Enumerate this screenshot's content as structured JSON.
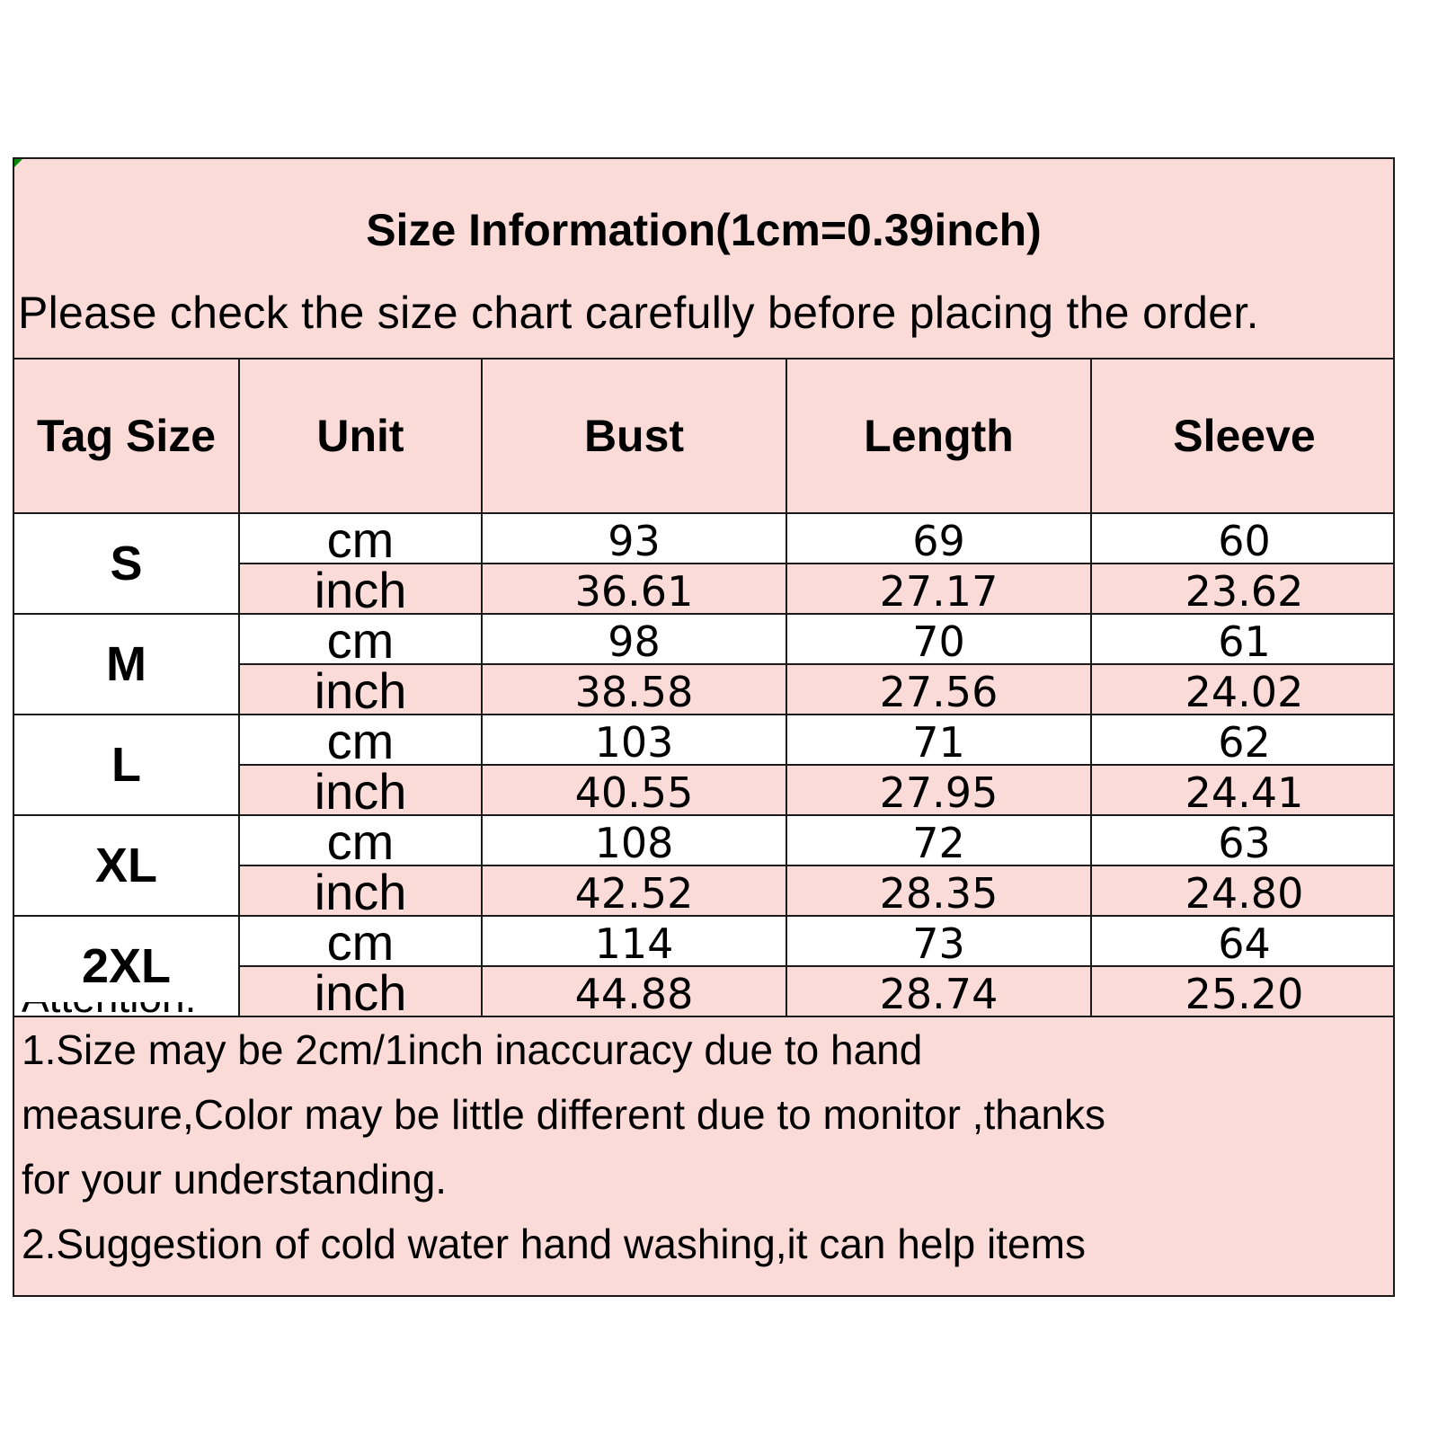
{
  "title": "Size Information(1cm=0.39inch)",
  "subtitle": "Please check the size chart carefully before placing the order.",
  "columns": [
    "Tag Size",
    "Unit",
    "Bust",
    "Length",
    "Sleeve"
  ],
  "sizes": [
    {
      "tag": "S",
      "cm": {
        "unit": "cm",
        "values": [
          "93",
          "69",
          "60"
        ]
      },
      "inch": {
        "unit": "inch",
        "values": [
          "36.61",
          "27.17",
          "23.62"
        ]
      }
    },
    {
      "tag": "M",
      "cm": {
        "unit": "cm",
        "values": [
          "98",
          "70",
          "61"
        ]
      },
      "inch": {
        "unit": "inch",
        "values": [
          "38.58",
          "27.56",
          "24.02"
        ]
      }
    },
    {
      "tag": "L",
      "cm": {
        "unit": "cm",
        "values": [
          "103",
          "71",
          "62"
        ]
      },
      "inch": {
        "unit": "inch",
        "values": [
          "40.55",
          "27.95",
          "24.41"
        ]
      }
    },
    {
      "tag": "XL",
      "cm": {
        "unit": "cm",
        "values": [
          "108",
          "72",
          "63"
        ]
      },
      "inch": {
        "unit": "inch",
        "values": [
          "42.52",
          "28.35",
          "24.80"
        ]
      }
    },
    {
      "tag": "2XL",
      "cm": {
        "unit": "cm",
        "values": [
          "114",
          "73",
          "64"
        ]
      },
      "inch": {
        "unit": "inch",
        "values": [
          "44.88",
          "28.74",
          "25.20"
        ]
      }
    }
  ],
  "notes": {
    "heading": "Attention:",
    "lines": [
      "1.Size may be 2cm/1inch inaccuracy due to hand",
      "measure,Color may be little different due to monitor ,thanks",
      "for your understanding.",
      "2.Suggestion of cold water hand washing,it can help items"
    ]
  },
  "colors": {
    "header_bg": "#fadbd8",
    "row_bg": "#ffffff",
    "border": "#1a1a1a",
    "corner_marker": "#0a8a0a"
  }
}
